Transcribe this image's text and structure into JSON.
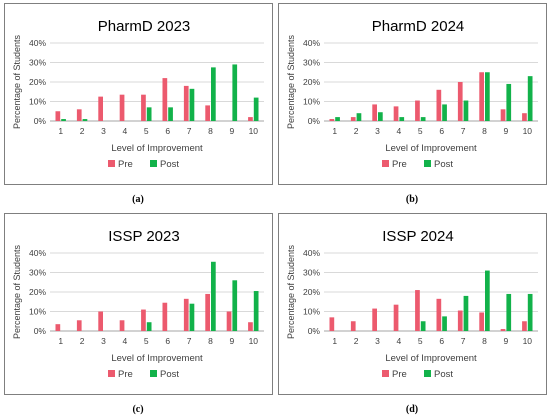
{
  "colors": {
    "pre": "#ec5a6e",
    "post": "#12b24a",
    "grid": "#d9d9d9",
    "axis": "#a6a6a6",
    "frame": "#7f7f7f",
    "text": "#404040"
  },
  "chart_data": [
    {
      "type": "bar",
      "title": "PharmD 2023",
      "caption": "(a)",
      "xlabel": "Level of Improvement",
      "ylabel": "Percentage of Students",
      "categories": [
        "1",
        "2",
        "3",
        "4",
        "5",
        "6",
        "7",
        "8",
        "9",
        "10"
      ],
      "yticks": [
        "0%",
        "10%",
        "20%",
        "30%",
        "40%"
      ],
      "ylim": [
        0,
        40
      ],
      "legend_position": "bottom",
      "series": [
        {
          "name": "Pre",
          "values": [
            5,
            6,
            12.5,
            13.5,
            13.5,
            22,
            18,
            8,
            0,
            2
          ]
        },
        {
          "name": "Post",
          "values": [
            1,
            1,
            0,
            0,
            7,
            7,
            16.5,
            27.5,
            29,
            12
          ]
        }
      ]
    },
    {
      "type": "bar",
      "title": "PharmD 2024",
      "caption": "(b)",
      "xlabel": "Level of Improvement",
      "ylabel": "Percentage of Students",
      "categories": [
        "1",
        "2",
        "3",
        "4",
        "5",
        "6",
        "7",
        "8",
        "9",
        "10"
      ],
      "yticks": [
        "0%",
        "10%",
        "20%",
        "30%",
        "40%"
      ],
      "ylim": [
        0,
        40
      ],
      "legend_position": "bottom",
      "series": [
        {
          "name": "Pre",
          "values": [
            1,
            2,
            8.5,
            7.5,
            10.5,
            16,
            20,
            25,
            6,
            4
          ]
        },
        {
          "name": "Post",
          "values": [
            2,
            4,
            4.5,
            2,
            2,
            8.5,
            10.5,
            25,
            19,
            23
          ]
        }
      ]
    },
    {
      "type": "bar",
      "title": "ISSP 2023",
      "caption": "(c)",
      "xlabel": "Level of Improvement",
      "ylabel": "Percentage of Students",
      "categories": [
        "1",
        "2",
        "3",
        "4",
        "5",
        "6",
        "7",
        "8",
        "9",
        "10"
      ],
      "yticks": [
        "0%",
        "10%",
        "20%",
        "30%",
        "40%"
      ],
      "ylim": [
        0,
        40
      ],
      "legend_position": "bottom",
      "series": [
        {
          "name": "Pre",
          "values": [
            3.5,
            5.5,
            10,
            5.5,
            11,
            14.5,
            16.5,
            19,
            10,
            4.5
          ]
        },
        {
          "name": "Post",
          "values": [
            0,
            0,
            0,
            0,
            4.5,
            0,
            14,
            35.5,
            26,
            20.5
          ]
        }
      ]
    },
    {
      "type": "bar",
      "title": "ISSP 2024",
      "caption": "(d)",
      "xlabel": "Level of Improvement",
      "ylabel": "Percentage of Students",
      "categories": [
        "1",
        "2",
        "3",
        "4",
        "5",
        "6",
        "7",
        "8",
        "9",
        "10"
      ],
      "yticks": [
        "0%",
        "10%",
        "20%",
        "30%",
        "40%"
      ],
      "ylim": [
        0,
        40
      ],
      "legend_position": "bottom",
      "series": [
        {
          "name": "Pre",
          "values": [
            7,
            5,
            11.5,
            13.5,
            21,
            16.5,
            10.5,
            9.5,
            1,
            5
          ]
        },
        {
          "name": "Post",
          "values": [
            0,
            0,
            0,
            0,
            5,
            7.5,
            18,
            31,
            19,
            19
          ]
        }
      ]
    }
  ]
}
